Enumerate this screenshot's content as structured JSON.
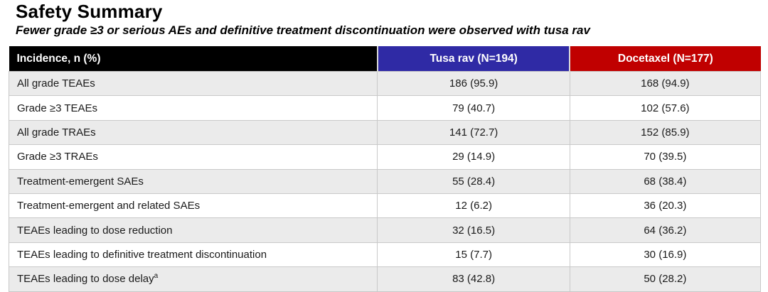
{
  "page": {
    "title": "Safety Summary",
    "subtitle": "Fewer grade ≥3 or serious AEs and definitive treatment discontinuation were observed with tusa rav"
  },
  "colors": {
    "incidence_header_bg": "#000000",
    "tusa_rav_header_bg": "#2F2AA5",
    "docetaxel_header_bg": "#C00000",
    "alt_row_bg": "#EBEBEB",
    "row_border": "#C9C9C9",
    "header_text": "#FFFFFF",
    "body_text": "#1A1A1A"
  },
  "table": {
    "columns": [
      {
        "label": "Incidence, n (%)"
      },
      {
        "label": "Tusa rav (N=194)"
      },
      {
        "label": "Docetaxel (N=177)"
      }
    ],
    "rows": [
      {
        "label": "All grade TEAEs",
        "tusa_rav": "186 (95.9)",
        "docetaxel": "168 (94.9)"
      },
      {
        "label": "Grade ≥3 TEAEs",
        "tusa_rav": "79 (40.7)",
        "docetaxel": "102 (57.6)"
      },
      {
        "label": "All grade TRAEs",
        "tusa_rav": "141 (72.7)",
        "docetaxel": "152 (85.9)"
      },
      {
        "label": "Grade ≥3 TRAEs",
        "tusa_rav": "29 (14.9)",
        "docetaxel": "70 (39.5)"
      },
      {
        "label": "Treatment-emergent SAEs",
        "tusa_rav": "55 (28.4)",
        "docetaxel": "68 (38.4)"
      },
      {
        "label": "Treatment-emergent and related SAEs",
        "tusa_rav": "12 (6.2)",
        "docetaxel": "36 (20.3)"
      },
      {
        "label": "TEAEs leading to dose reduction",
        "tusa_rav": "32 (16.5)",
        "docetaxel": "64 (36.2)"
      },
      {
        "label": "TEAEs leading to definitive treatment discontinuation",
        "tusa_rav": "15 (7.7)",
        "docetaxel": "30 (16.9)"
      },
      {
        "label": "TEAEs leading to dose delay",
        "sup": "a",
        "tusa_rav": "83 (42.8)",
        "docetaxel": "50 (28.2)"
      }
    ]
  }
}
